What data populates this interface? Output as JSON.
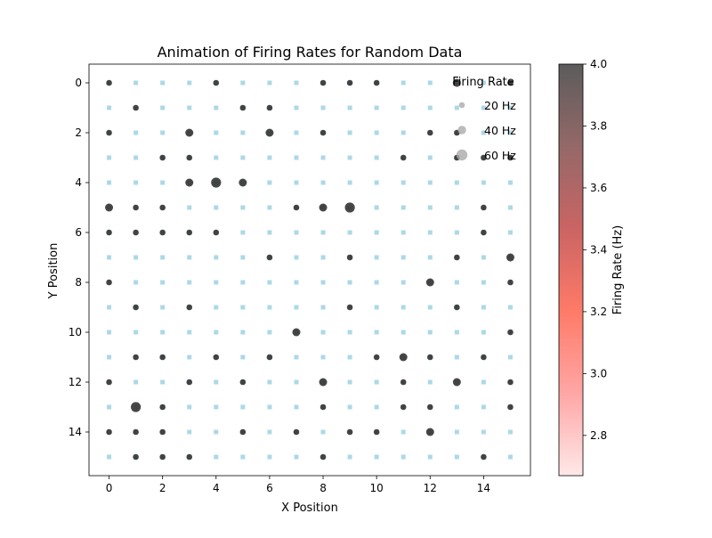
{
  "chart_data": {
    "type": "scatter",
    "title": "Animation of Firing Rates for Random Data",
    "xlabel": "X Position",
    "ylabel": "Y Position",
    "xlim": [
      -0.75,
      15.75
    ],
    "ylim": [
      15.75,
      -0.75
    ],
    "y_inverted": true,
    "grid": false,
    "x_ticks": [
      0,
      2,
      4,
      6,
      8,
      10,
      12,
      14
    ],
    "y_ticks": [
      0,
      2,
      4,
      6,
      8,
      10,
      12,
      14
    ],
    "background_grid": {
      "x": [
        0,
        1,
        2,
        3,
        4,
        5,
        6,
        7,
        8,
        9,
        10,
        11,
        12,
        13,
        14,
        15
      ],
      "y": [
        0,
        1,
        2,
        3,
        4,
        5,
        6,
        7,
        8,
        9,
        10,
        11,
        12,
        13,
        14,
        15
      ],
      "color": "#add8e6"
    },
    "points_color": "#333333",
    "points": [
      {
        "x": 0,
        "y": 0,
        "r": 1
      },
      {
        "x": 4,
        "y": 0,
        "r": 1
      },
      {
        "x": 8,
        "y": 0,
        "r": 1
      },
      {
        "x": 9,
        "y": 0,
        "r": 1
      },
      {
        "x": 10,
        "y": 0,
        "r": 1
      },
      {
        "x": 13,
        "y": 0,
        "r": 2
      },
      {
        "x": 15,
        "y": 0,
        "r": 1
      },
      {
        "x": 1,
        "y": 1,
        "r": 1
      },
      {
        "x": 5,
        "y": 1,
        "r": 1
      },
      {
        "x": 6,
        "y": 1,
        "r": 1
      },
      {
        "x": 0,
        "y": 2,
        "r": 1
      },
      {
        "x": 3,
        "y": 2,
        "r": 2
      },
      {
        "x": 6,
        "y": 2,
        "r": 2
      },
      {
        "x": 8,
        "y": 2,
        "r": 1
      },
      {
        "x": 12,
        "y": 2,
        "r": 1
      },
      {
        "x": 13,
        "y": 2,
        "r": 1
      },
      {
        "x": 2,
        "y": 3,
        "r": 1
      },
      {
        "x": 3,
        "y": 3,
        "r": 1
      },
      {
        "x": 11,
        "y": 3,
        "r": 1
      },
      {
        "x": 13,
        "y": 3,
        "r": 1
      },
      {
        "x": 14,
        "y": 3,
        "r": 1
      },
      {
        "x": 15,
        "y": 3,
        "r": 1
      },
      {
        "x": 3,
        "y": 4,
        "r": 2
      },
      {
        "x": 4,
        "y": 4,
        "r": 3
      },
      {
        "x": 5,
        "y": 4,
        "r": 2
      },
      {
        "x": 0,
        "y": 5,
        "r": 2
      },
      {
        "x": 1,
        "y": 5,
        "r": 1
      },
      {
        "x": 2,
        "y": 5,
        "r": 1
      },
      {
        "x": 7,
        "y": 5,
        "r": 1
      },
      {
        "x": 8,
        "y": 5,
        "r": 2
      },
      {
        "x": 9,
        "y": 5,
        "r": 3
      },
      {
        "x": 14,
        "y": 5,
        "r": 1
      },
      {
        "x": 0,
        "y": 6,
        "r": 1
      },
      {
        "x": 1,
        "y": 6,
        "r": 1
      },
      {
        "x": 2,
        "y": 6,
        "r": 1
      },
      {
        "x": 3,
        "y": 6,
        "r": 1
      },
      {
        "x": 4,
        "y": 6,
        "r": 1
      },
      {
        "x": 14,
        "y": 6,
        "r": 1
      },
      {
        "x": 6,
        "y": 7,
        "r": 1
      },
      {
        "x": 9,
        "y": 7,
        "r": 1
      },
      {
        "x": 13,
        "y": 7,
        "r": 1
      },
      {
        "x": 15,
        "y": 7,
        "r": 2
      },
      {
        "x": 0,
        "y": 8,
        "r": 1
      },
      {
        "x": 12,
        "y": 8,
        "r": 2
      },
      {
        "x": 15,
        "y": 8,
        "r": 1
      },
      {
        "x": 1,
        "y": 9,
        "r": 1
      },
      {
        "x": 3,
        "y": 9,
        "r": 1
      },
      {
        "x": 9,
        "y": 9,
        "r": 1
      },
      {
        "x": 13,
        "y": 9,
        "r": 1
      },
      {
        "x": 7,
        "y": 10,
        "r": 2
      },
      {
        "x": 15,
        "y": 10,
        "r": 1
      },
      {
        "x": 1,
        "y": 11,
        "r": 1
      },
      {
        "x": 2,
        "y": 11,
        "r": 1
      },
      {
        "x": 4,
        "y": 11,
        "r": 1
      },
      {
        "x": 6,
        "y": 11,
        "r": 1
      },
      {
        "x": 10,
        "y": 11,
        "r": 1
      },
      {
        "x": 11,
        "y": 11,
        "r": 2
      },
      {
        "x": 12,
        "y": 11,
        "r": 1
      },
      {
        "x": 14,
        "y": 11,
        "r": 1
      },
      {
        "x": 0,
        "y": 12,
        "r": 1
      },
      {
        "x": 3,
        "y": 12,
        "r": 1
      },
      {
        "x": 5,
        "y": 12,
        "r": 1
      },
      {
        "x": 8,
        "y": 12,
        "r": 2
      },
      {
        "x": 11,
        "y": 12,
        "r": 1
      },
      {
        "x": 13,
        "y": 12,
        "r": 2
      },
      {
        "x": 15,
        "y": 12,
        "r": 1
      },
      {
        "x": 1,
        "y": 13,
        "r": 3
      },
      {
        "x": 2,
        "y": 13,
        "r": 1
      },
      {
        "x": 8,
        "y": 13,
        "r": 1
      },
      {
        "x": 11,
        "y": 13,
        "r": 1
      },
      {
        "x": 12,
        "y": 13,
        "r": 1
      },
      {
        "x": 15,
        "y": 13,
        "r": 1
      },
      {
        "x": 0,
        "y": 14,
        "r": 1
      },
      {
        "x": 1,
        "y": 14,
        "r": 1
      },
      {
        "x": 2,
        "y": 14,
        "r": 1
      },
      {
        "x": 5,
        "y": 14,
        "r": 1
      },
      {
        "x": 7,
        "y": 14,
        "r": 1
      },
      {
        "x": 9,
        "y": 14,
        "r": 1
      },
      {
        "x": 10,
        "y": 14,
        "r": 1
      },
      {
        "x": 12,
        "y": 14,
        "r": 2
      },
      {
        "x": 1,
        "y": 15,
        "r": 1
      },
      {
        "x": 2,
        "y": 15,
        "r": 1
      },
      {
        "x": 3,
        "y": 15,
        "r": 1
      },
      {
        "x": 8,
        "y": 15,
        "r": 1
      },
      {
        "x": 14,
        "y": 15,
        "r": 1
      }
    ],
    "legend": {
      "title": "Firing Rate",
      "placement": "top-right",
      "color": "#aaaaaa",
      "entries": [
        {
          "label": "20 Hz",
          "value": 20
        },
        {
          "label": "40 Hz",
          "value": 40
        },
        {
          "label": "60 Hz",
          "value": 60
        }
      ]
    },
    "colorbar": {
      "label": "Firing Rate (Hz)",
      "min": 2.67,
      "max": 4.0,
      "ticks": [
        2.8,
        3.0,
        3.2,
        3.4,
        3.6,
        3.8,
        4.0
      ],
      "tick_labels": [
        "2.8",
        "3.0",
        "3.2",
        "3.4",
        "3.6",
        "3.8",
        "4.0"
      ],
      "colors": [
        "#ffe8e8",
        "#ffa6a6",
        "#ff7a68",
        "#cb6464",
        "#956868",
        "#5c5c5c"
      ]
    }
  }
}
